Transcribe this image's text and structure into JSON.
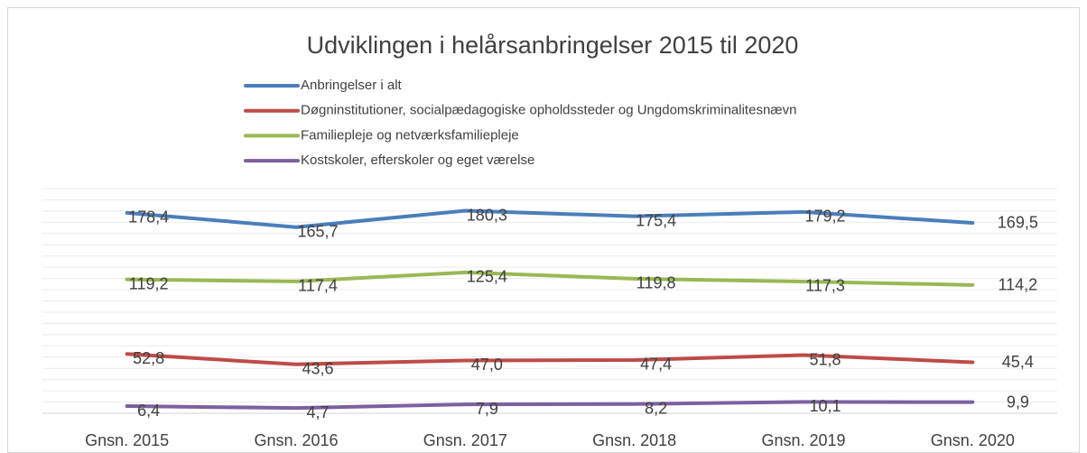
{
  "chart_data": {
    "type": "line",
    "title": "Udviklingen i helårsanbringelser 2015 til 2020",
    "categories": [
      "Gnsn. 2015",
      "Gnsn. 2016",
      "Gnsn. 2017",
      "Gnsn. 2018",
      "Gnsn. 2019",
      "Gnsn. 2020"
    ],
    "series": [
      {
        "name": "Anbringelser i alt",
        "color": "#4a7ebb",
        "values": [
          178.4,
          165.7,
          180.3,
          175.4,
          179.2,
          169.5
        ],
        "value_labels": [
          "178,4",
          "165,7",
          "180,3",
          "175,4",
          "179,2",
          "169,5"
        ]
      },
      {
        "name": "Døgninstitutioner, socialpædagogiske opholdssteder og Ungdomskriminalitesnævn",
        "color": "#be4b48",
        "values": [
          52.8,
          43.6,
          47.0,
          47.4,
          51.8,
          45.4
        ],
        "value_labels": [
          "52,8",
          "43,6",
          "47,0",
          "47,4",
          "51,8",
          "45,4"
        ]
      },
      {
        "name": "Familiepleje og netværksfamiliepleje",
        "color": "#98b954",
        "values": [
          119.2,
          117.4,
          125.4,
          119.8,
          117.3,
          114.2
        ],
        "value_labels": [
          "119,2",
          "117,4",
          "125,4",
          "119,8",
          "117,3",
          "114,2"
        ]
      },
      {
        "name": "Kostskoler, efterskoler og eget værelse",
        "color": "#7d60a0",
        "values": [
          6.4,
          4.7,
          7.9,
          8.2,
          10.1,
          9.9
        ],
        "value_labels": [
          "6,4",
          "4,7",
          "7,9",
          "8,2",
          "10,1",
          "9,9"
        ]
      }
    ],
    "ylim": [
      0,
      200
    ],
    "yticks": [
      0,
      10,
      20,
      30,
      40,
      50,
      60,
      70,
      80,
      90,
      100,
      110,
      120,
      130,
      140,
      150,
      160,
      170,
      180,
      190,
      200
    ],
    "grid": true
  }
}
